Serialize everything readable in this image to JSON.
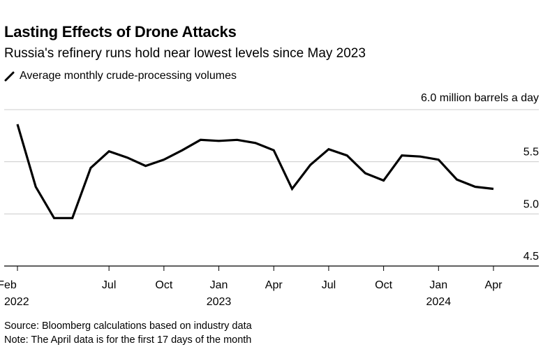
{
  "chart_data": {
    "type": "line",
    "title": "Lasting Effects of Drone Attacks",
    "subtitle": "Russia's refinery runs hold near lowest levels since May 2023",
    "legend": [
      {
        "label": "Average monthly crude-processing volumes"
      }
    ],
    "ylabel": "6.0 million barrels a day",
    "ylim": [
      4.5,
      6.0
    ],
    "yticks": [
      {
        "value": 4.5,
        "label": "4.5"
      },
      {
        "value": 5.0,
        "label": "5.0"
      },
      {
        "value": 5.5,
        "label": "5.5"
      }
    ],
    "x_index_range": [
      0,
      26
    ],
    "xticks": [
      {
        "index": 0,
        "label": "Feb",
        "sublabel": "2022"
      },
      {
        "index": 5,
        "label": "Jul",
        "sublabel": ""
      },
      {
        "index": 8,
        "label": "Oct",
        "sublabel": ""
      },
      {
        "index": 11,
        "label": "Jan",
        "sublabel": "2023"
      },
      {
        "index": 14,
        "label": "Apr",
        "sublabel": ""
      },
      {
        "index": 17,
        "label": "Jul",
        "sublabel": ""
      },
      {
        "index": 20,
        "label": "Oct",
        "sublabel": ""
      },
      {
        "index": 23,
        "label": "Jan",
        "sublabel": "2024"
      },
      {
        "index": 26,
        "label": "Apr",
        "sublabel": ""
      }
    ],
    "series": [
      {
        "name": "Average monthly crude-processing volumes",
        "color": "#000000",
        "x": [
          "Feb 2022",
          "Mar 2022",
          "Apr 2022",
          "May 2022",
          "Jun 2022",
          "Jul 2022",
          "Aug 2022",
          "Sep 2022",
          "Oct 2022",
          "Nov 2022",
          "Dec 2022",
          "Jan 2023",
          "Feb 2023",
          "Mar 2023",
          "Apr 2023",
          "May 2023",
          "Jun 2023",
          "Jul 2023",
          "Aug 2023",
          "Sep 2023",
          "Oct 2023",
          "Nov 2023",
          "Dec 2023",
          "Jan 2024",
          "Feb 2024",
          "Mar 2024",
          "Apr 2024"
        ],
        "values": [
          5.86,
          5.26,
          4.96,
          4.96,
          5.44,
          5.6,
          5.54,
          5.46,
          5.52,
          5.61,
          5.71,
          5.7,
          5.71,
          5.68,
          5.61,
          5.24,
          5.47,
          5.62,
          5.56,
          5.39,
          5.32,
          5.56,
          5.55,
          5.52,
          5.33,
          5.26,
          5.24
        ]
      }
    ]
  },
  "footer": {
    "source": "Source: Bloomberg calculations based on industry data",
    "note": "Note: The April data is for the first 17 days of the month"
  }
}
